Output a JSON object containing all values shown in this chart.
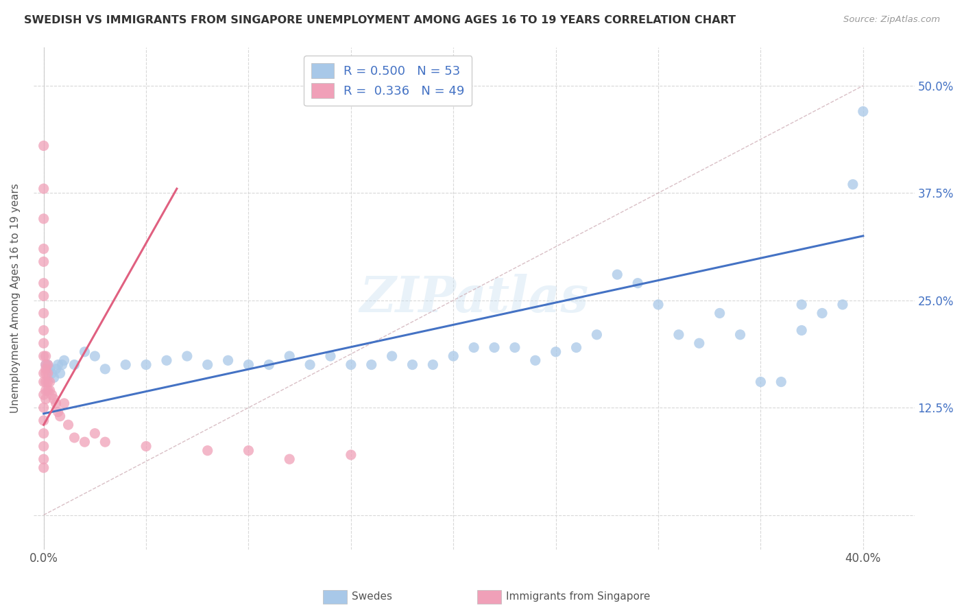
{
  "title": "SWEDISH VS IMMIGRANTS FROM SINGAPORE UNEMPLOYMENT AMONG AGES 16 TO 19 YEARS CORRELATION CHART",
  "source": "Source: ZipAtlas.com",
  "ylabel": "Unemployment Among Ages 16 to 19 years",
  "ytick_vals": [
    0.0,
    0.125,
    0.25,
    0.375,
    0.5
  ],
  "ytick_labels": [
    "",
    "12.5%",
    "25.0%",
    "37.5%",
    "50.0%"
  ],
  "xlim": [
    -0.005,
    0.425
  ],
  "ylim": [
    -0.04,
    0.545
  ],
  "legend_R_swedes": "0.500",
  "legend_N_swedes": "53",
  "legend_R_immigrants": "0.336",
  "legend_N_immigrants": "49",
  "swedes_color": "#a8c8e8",
  "immigrants_color": "#f0a0b8",
  "trendline_swedes_color": "#4472c4",
  "trendline_immigrants_color": "#e06080",
  "diagonal_color": "#d0b0b8",
  "watermark_text": "ZIPatlas",
  "background_color": "#ffffff",
  "grid_color": "#d8d8d8",
  "swedes_x": [
    0.002,
    0.003,
    0.004,
    0.005,
    0.006,
    0.007,
    0.008,
    0.009,
    0.01,
    0.015,
    0.02,
    0.025,
    0.03,
    0.04,
    0.05,
    0.06,
    0.07,
    0.08,
    0.09,
    0.1,
    0.11,
    0.12,
    0.13,
    0.14,
    0.15,
    0.16,
    0.17,
    0.18,
    0.19,
    0.2,
    0.21,
    0.22,
    0.23,
    0.24,
    0.25,
    0.26,
    0.27,
    0.28,
    0.29,
    0.3,
    0.31,
    0.32,
    0.33,
    0.34,
    0.35,
    0.36,
    0.37,
    0.38,
    0.39,
    0.4,
    0.37,
    0.395,
    0.001
  ],
  "swedes_y": [
    0.175,
    0.17,
    0.165,
    0.16,
    0.17,
    0.175,
    0.165,
    0.175,
    0.18,
    0.175,
    0.19,
    0.185,
    0.17,
    0.175,
    0.175,
    0.18,
    0.185,
    0.175,
    0.18,
    0.175,
    0.175,
    0.185,
    0.175,
    0.185,
    0.175,
    0.175,
    0.185,
    0.175,
    0.175,
    0.185,
    0.195,
    0.195,
    0.195,
    0.18,
    0.19,
    0.195,
    0.21,
    0.28,
    0.27,
    0.245,
    0.21,
    0.2,
    0.235,
    0.21,
    0.155,
    0.155,
    0.215,
    0.235,
    0.245,
    0.47,
    0.245,
    0.385,
    0.175
  ],
  "immigrants_x": [
    0.0,
    0.0,
    0.0,
    0.0,
    0.0,
    0.0,
    0.0,
    0.0,
    0.0,
    0.0,
    0.0,
    0.0,
    0.0,
    0.0,
    0.0,
    0.0,
    0.0,
    0.0,
    0.0,
    0.0,
    0.001,
    0.001,
    0.001,
    0.001,
    0.001,
    0.001,
    0.001,
    0.002,
    0.002,
    0.002,
    0.002,
    0.003,
    0.003,
    0.004,
    0.005,
    0.006,
    0.007,
    0.008,
    0.01,
    0.012,
    0.015,
    0.02,
    0.025,
    0.03,
    0.05,
    0.08,
    0.1,
    0.12,
    0.15
  ],
  "immigrants_y": [
    0.43,
    0.38,
    0.345,
    0.31,
    0.295,
    0.27,
    0.255,
    0.235,
    0.215,
    0.2,
    0.185,
    0.165,
    0.155,
    0.14,
    0.125,
    0.11,
    0.095,
    0.08,
    0.065,
    0.055,
    0.175,
    0.185,
    0.17,
    0.165,
    0.155,
    0.145,
    0.135,
    0.175,
    0.165,
    0.155,
    0.145,
    0.155,
    0.145,
    0.14,
    0.135,
    0.13,
    0.12,
    0.115,
    0.13,
    0.105,
    0.09,
    0.085,
    0.095,
    0.085,
    0.08,
    0.075,
    0.075,
    0.065,
    0.07
  ],
  "imm_trend_x0": 0.0,
  "imm_trend_y0": 0.105,
  "imm_trend_x1": 0.065,
  "imm_trend_y1": 0.38,
  "sw_trend_x0": 0.0,
  "sw_trend_y0": 0.118,
  "sw_trend_x1": 0.4,
  "sw_trend_y1": 0.325
}
